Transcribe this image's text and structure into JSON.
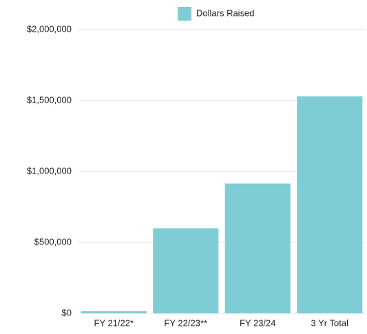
{
  "chart_data": {
    "type": "bar",
    "categories": [
      "FY 21/22*",
      "FY 22/23**",
      "FY 23/24",
      "3 Yr Total"
    ],
    "series": [
      {
        "name": "Dollars Raised",
        "color": "#7ecdd4",
        "values": [
          15000,
          600000,
          915000,
          1530000
        ]
      }
    ],
    "ylim": [
      0,
      2000000
    ],
    "yticks": [
      {
        "value": 0,
        "label": "$0"
      },
      {
        "value": 500000,
        "label": "$500,000"
      },
      {
        "value": 1000000,
        "label": "$1,000,000"
      },
      {
        "value": 1500000,
        "label": "$1,500,000"
      },
      {
        "value": 2000000,
        "label": "$2,000,000"
      }
    ],
    "grid": true,
    "legend": "top"
  }
}
